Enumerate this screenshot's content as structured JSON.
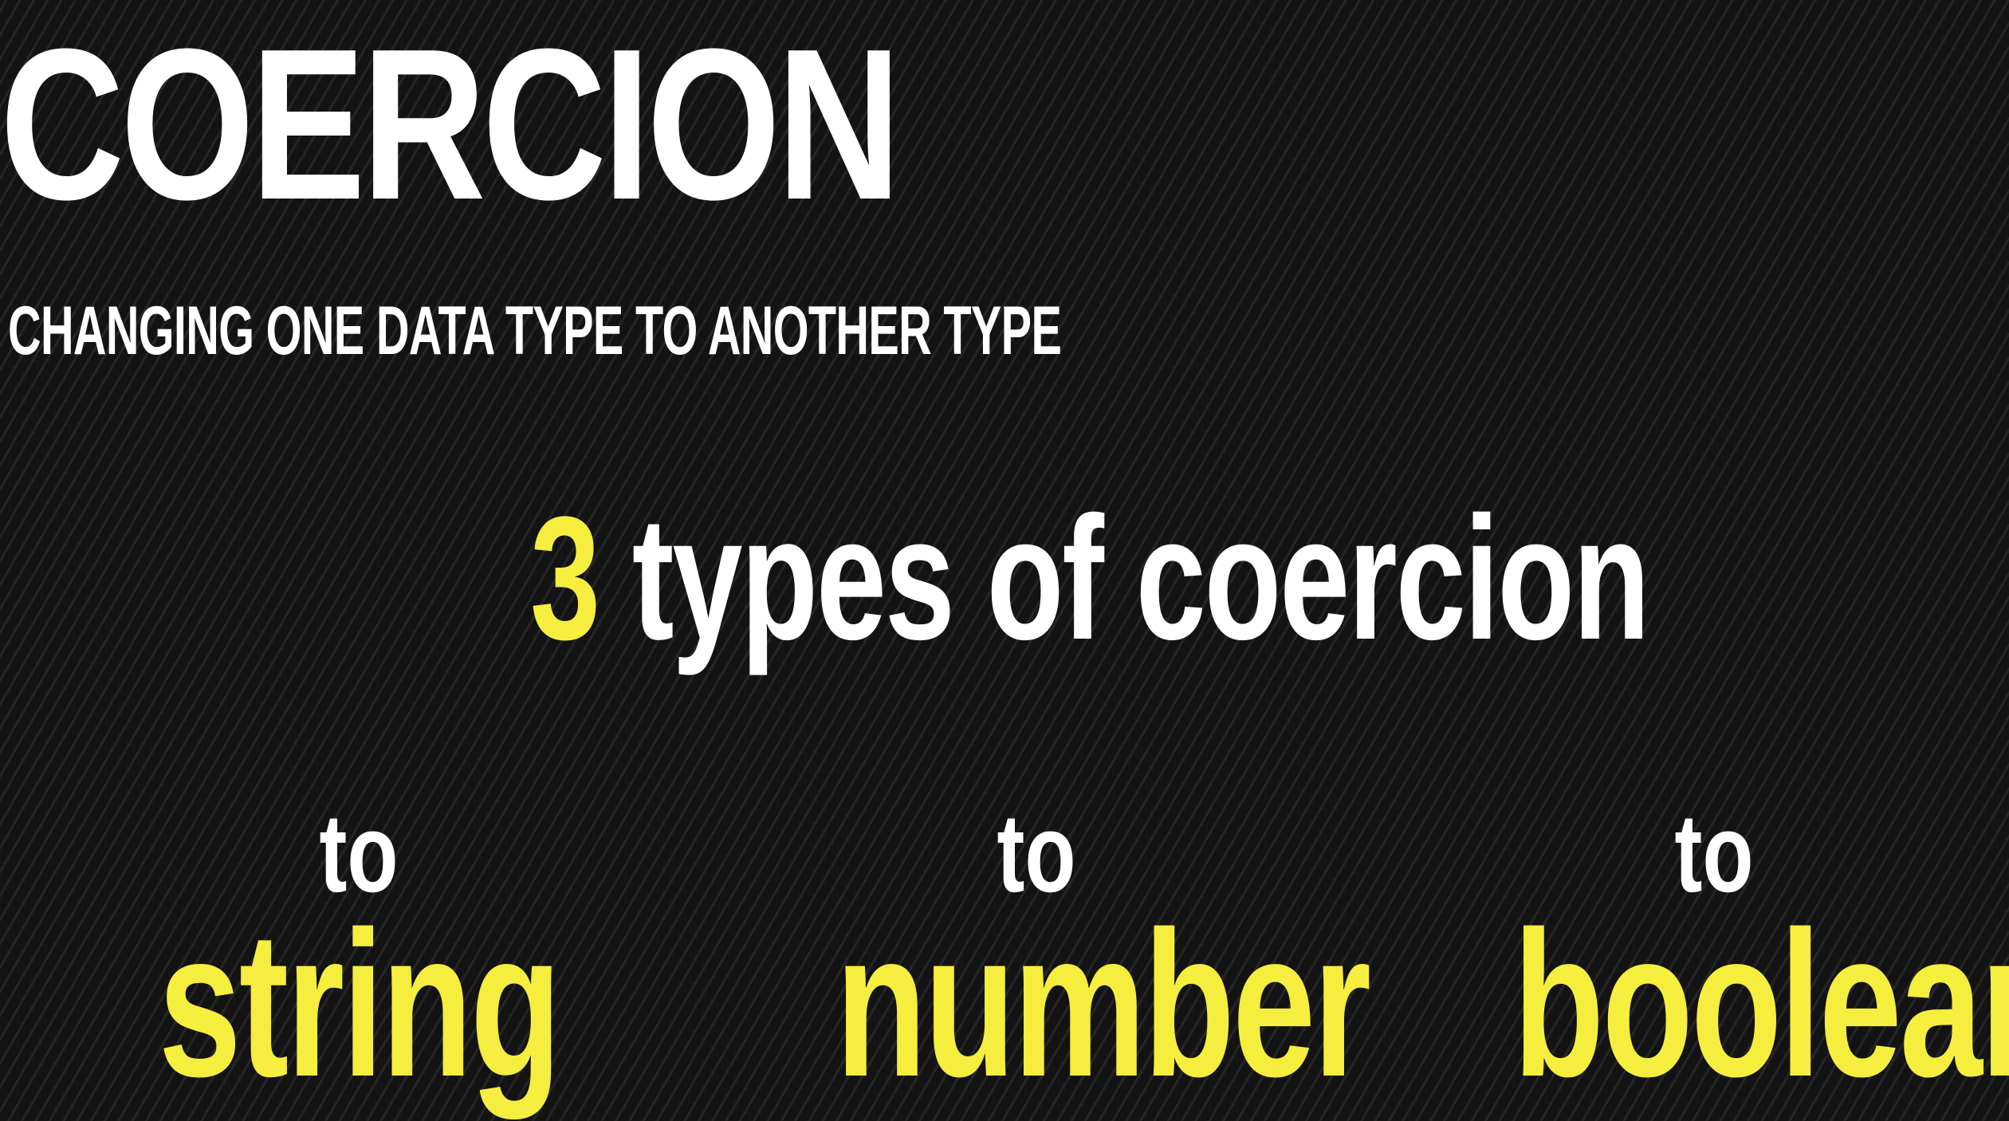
{
  "slide": {
    "title": "COERCION",
    "subtitle": "CHANGING ONE DATA TYPE TO ANOTHER TYPE",
    "headline_number": "3",
    "headline_text": "types of coercion",
    "items": [
      {
        "prefix": "to",
        "label": "string"
      },
      {
        "prefix": "to",
        "label": "number"
      },
      {
        "prefix": "to",
        "label": "boolean"
      }
    ],
    "colors": {
      "background": "#161616",
      "text": "#ffffff",
      "accent": "#f6ee3e"
    }
  }
}
